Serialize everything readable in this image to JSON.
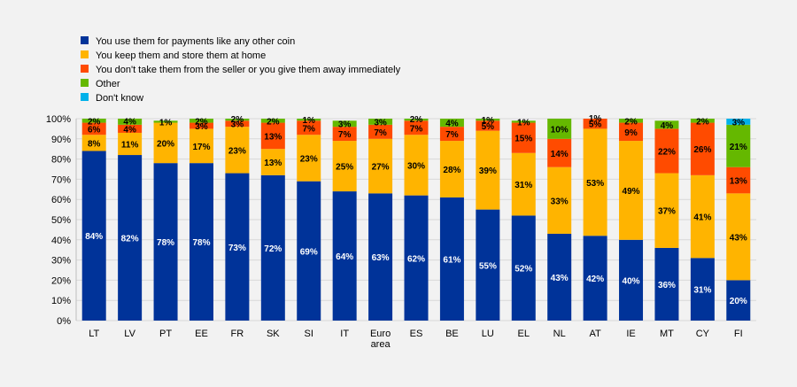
{
  "chart_data": {
    "type": "bar",
    "stacked": true,
    "percent": true,
    "title": "",
    "xlabel": "",
    "ylabel": "",
    "ylim": [
      0,
      100
    ],
    "yticks": [
      "0%",
      "10%",
      "20%",
      "30%",
      "40%",
      "50%",
      "60%",
      "70%",
      "80%",
      "90%",
      "100%"
    ],
    "categories": [
      "LT",
      "LV",
      "PT",
      "EE",
      "FR",
      "SK",
      "SI",
      "IT",
      "Euro area",
      "ES",
      "BE",
      "LU",
      "EL",
      "NL",
      "AT",
      "IE",
      "MT",
      "CY",
      "FI"
    ],
    "legend_position": "top-left",
    "series": [
      {
        "name": "You use them for payments like any other coin",
        "color": "#003399",
        "values": [
          84,
          82,
          78,
          78,
          73,
          72,
          69,
          64,
          63,
          62,
          61,
          55,
          52,
          43,
          42,
          40,
          36,
          31,
          20
        ],
        "labels": [
          "84%",
          "82%",
          "78%",
          "78%",
          "73%",
          "72%",
          "69%",
          "64%",
          "63%",
          "62%",
          "61%",
          "55%",
          "52%",
          "43%",
          "42%",
          "40%",
          "36%",
          "31%",
          "20%"
        ]
      },
      {
        "name": "You keep them and store them at home",
        "color": "#ffb400",
        "values": [
          8,
          11,
          20,
          17,
          23,
          13,
          23,
          25,
          27,
          30,
          28,
          39,
          31,
          33,
          53,
          49,
          37,
          41,
          43
        ],
        "labels": [
          "8%",
          "11%",
          "20%",
          "17%",
          "23%",
          "13%",
          "23%",
          "25%",
          "27%",
          "30%",
          "28%",
          "39%",
          "31%",
          "33%",
          "53%",
          "49%",
          "37%",
          "41%",
          "43%"
        ]
      },
      {
        "name": "You don't take them from the seller or you give them away immediately",
        "color": "#ff4b00",
        "values": [
          6,
          4,
          0,
          3,
          3,
          13,
          7,
          7,
          7,
          7,
          7,
          5,
          15,
          14,
          5,
          9,
          22,
          26,
          13
        ],
        "labels": [
          "6%",
          "4%",
          "",
          "3%",
          "3%",
          "13%",
          "7%",
          "7%",
          "7%",
          "7%",
          "7%",
          "5%",
          "15%",
          "14%",
          "5%",
          "9%",
          "22%",
          "26%",
          "13%"
        ]
      },
      {
        "name": "Other",
        "color": "#65b800",
        "values": [
          2,
          4,
          1,
          2,
          2,
          2,
          1,
          3,
          3,
          2,
          4,
          1,
          1,
          10,
          1,
          2,
          4,
          2,
          21
        ],
        "labels": [
          "2%",
          "4%",
          "1%",
          "2%",
          "2%",
          "2%",
          "1%",
          "3%",
          "3%",
          "2%",
          "4%",
          "1%",
          "1%",
          "10%",
          "1%",
          "2%",
          "4%",
          "2%",
          "21%"
        ]
      },
      {
        "name": "Don't know",
        "color": "#00b1ea",
        "values": [
          0,
          0,
          0,
          0,
          0,
          0,
          0,
          0,
          0,
          0,
          0,
          0,
          0,
          0,
          0,
          0,
          0,
          0,
          3
        ],
        "labels": [
          "",
          "",
          "",
          "",
          "",
          "",
          "",
          "",
          "",
          "",
          "",
          "",
          "",
          "",
          "",
          "",
          "",
          "",
          "3%"
        ]
      }
    ]
  }
}
